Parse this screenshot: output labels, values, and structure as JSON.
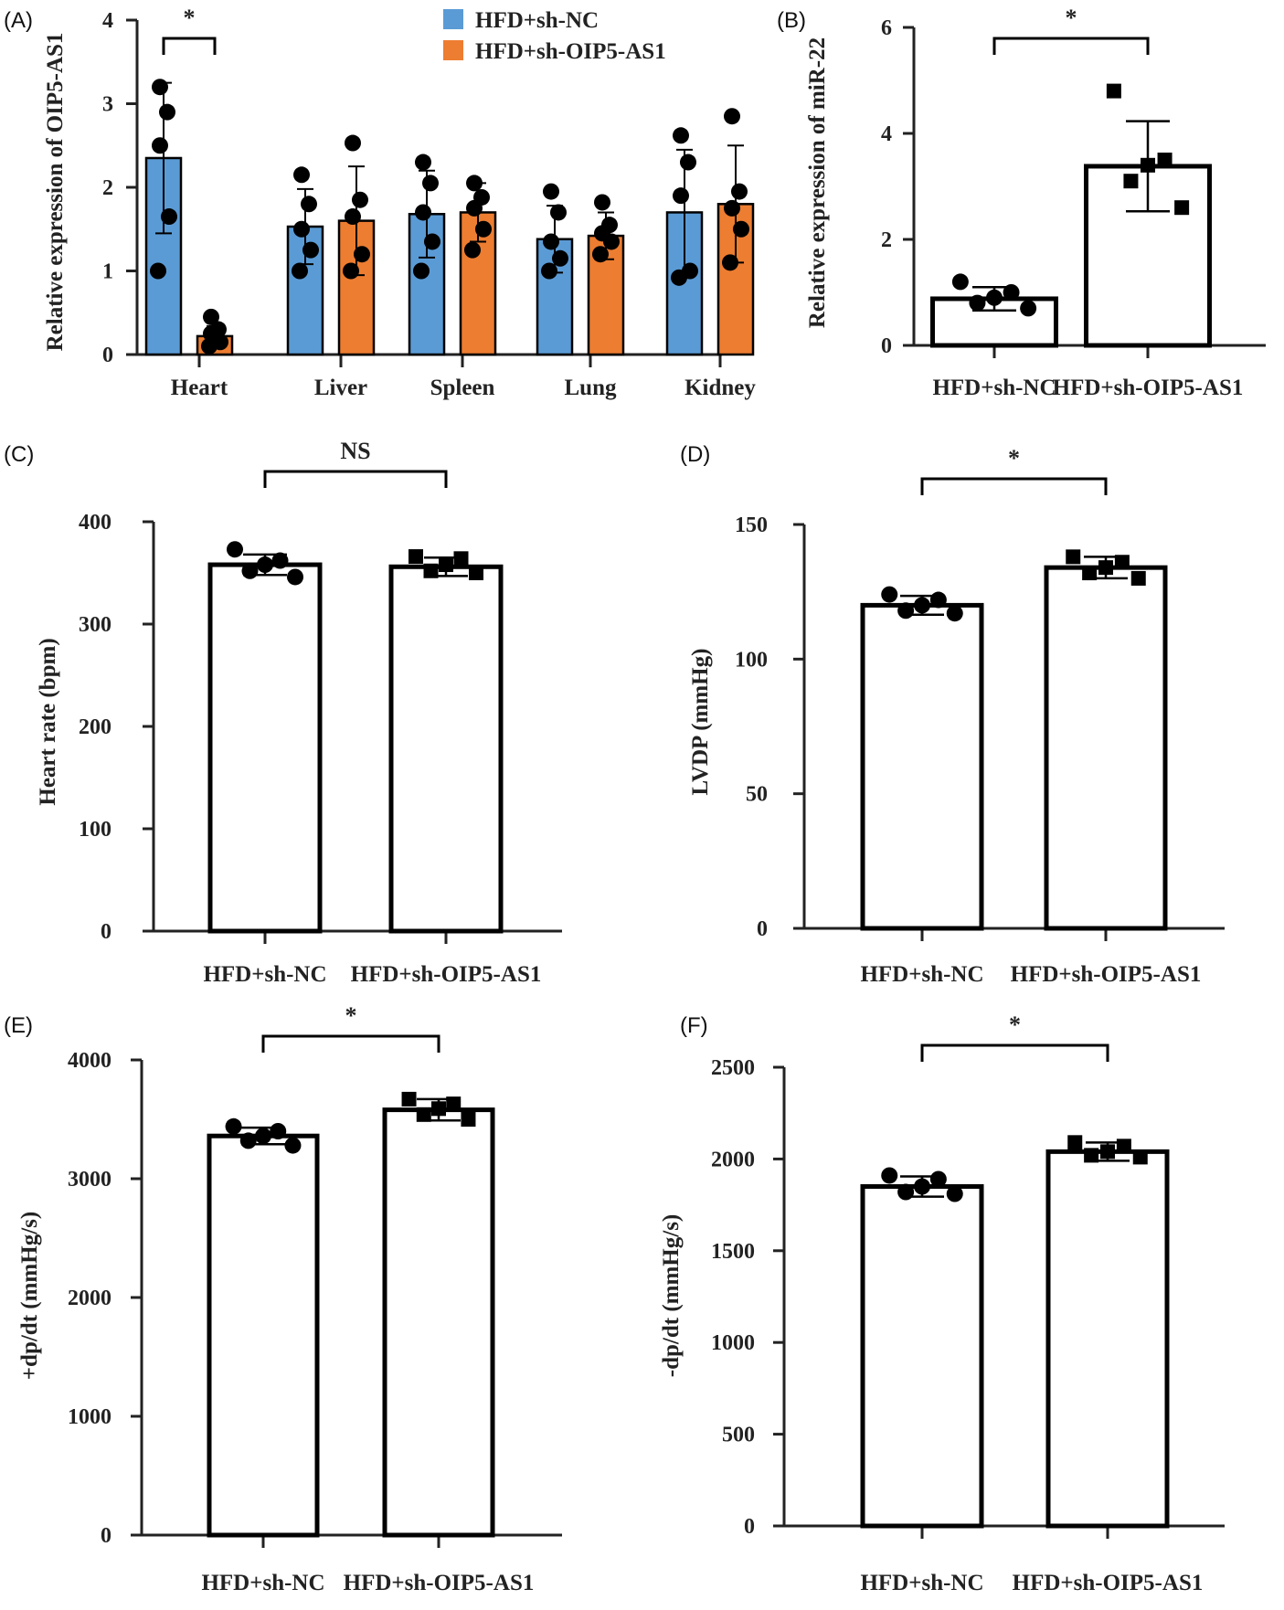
{
  "colors": {
    "series1": "#5b9bd5",
    "series2": "#ed7d31",
    "outline": "#000000"
  },
  "chart_data": [
    {
      "panel": "(A)",
      "type": "bar",
      "ylabel": "Relative expression of OIP5-AS1",
      "ylim": [
        0,
        4
      ],
      "yticks": [
        "0",
        "1",
        "2",
        "3",
        "4"
      ],
      "legend_placement": "top-center",
      "categories": [
        "Heart",
        "Liver",
        "Spleen",
        "Lung",
        "Kidney"
      ],
      "series": [
        {
          "name": "HFD+sh-NC",
          "color": "#5b9bd5",
          "marker": "circle",
          "values": [
            2.35,
            1.53,
            1.68,
            1.38,
            1.7
          ],
          "errors": [
            0.9,
            0.45,
            0.52,
            0.4,
            0.75
          ],
          "points": [
            [
              3.2,
              2.9,
              2.5,
              1.65,
              1.0
            ],
            [
              2.15,
              1.8,
              1.5,
              1.25,
              1.0
            ],
            [
              2.3,
              2.05,
              1.7,
              1.35,
              1.0
            ],
            [
              1.95,
              1.7,
              1.35,
              1.15,
              1.0
            ],
            [
              2.62,
              2.3,
              1.9,
              1.0,
              0.92
            ]
          ]
        },
        {
          "name": "HFD+sh-OIP5-AS1",
          "color": "#ed7d31",
          "marker": "circle",
          "values": [
            0.22,
            1.6,
            1.7,
            1.42,
            1.8
          ],
          "errors": [
            0.12,
            0.65,
            0.35,
            0.28,
            0.7
          ],
          "points": [
            [
              0.45,
              0.3,
              0.25,
              0.15,
              0.1
            ],
            [
              2.53,
              1.85,
              1.65,
              1.2,
              1.0
            ],
            [
              2.05,
              1.88,
              1.75,
              1.5,
              1.25
            ],
            [
              1.82,
              1.55,
              1.45,
              1.35,
              1.2
            ],
            [
              2.85,
              1.95,
              1.75,
              1.5,
              1.1
            ]
          ]
        }
      ],
      "annotations": [
        {
          "between": [
            "Heart:HFD+sh-NC",
            "Heart:HFD+sh-OIP5-AS1"
          ],
          "text": "*"
        }
      ]
    },
    {
      "panel": "(B)",
      "type": "bar",
      "ylabel": "Relative expression of miR-22",
      "ylim": [
        0,
        6
      ],
      "yticks": [
        "0",
        "2",
        "4",
        "6"
      ],
      "categories": [
        "HFD+sh-NC",
        "HFD+sh-OIP5-AS1"
      ],
      "values": [
        0.88,
        3.38
      ],
      "errors": [
        0.22,
        0.85
      ],
      "markers": [
        "circle",
        "square"
      ],
      "points": [
        [
          1.2,
          1.0,
          0.9,
          0.8,
          0.7
        ],
        [
          4.8,
          3.5,
          3.4,
          3.1,
          2.6
        ]
      ],
      "annotations": [
        {
          "between": [
            "HFD+sh-NC",
            "HFD+sh-OIP5-AS1"
          ],
          "text": "*"
        }
      ]
    },
    {
      "panel": "(C)",
      "type": "bar",
      "ylabel": "Heart rate (bpm)",
      "ylim": [
        0,
        400
      ],
      "yticks": [
        "0",
        "100",
        "200",
        "300",
        "400"
      ],
      "categories": [
        "HFD+sh-NC",
        "HFD+sh-OIP5-AS1"
      ],
      "values": [
        358,
        356
      ],
      "errors": [
        10,
        9
      ],
      "markers": [
        "circle",
        "square"
      ],
      "points": [
        [
          373,
          362,
          358,
          352,
          346
        ],
        [
          366,
          364,
          358,
          352,
          350
        ]
      ],
      "annotations": [
        {
          "between": [
            "HFD+sh-NC",
            "HFD+sh-OIP5-AS1"
          ],
          "text": "NS"
        }
      ]
    },
    {
      "panel": "(D)",
      "type": "bar",
      "ylabel": "LVDP (mmHg)",
      "ylim": [
        0,
        150
      ],
      "yticks": [
        "0",
        "50",
        "100",
        "150"
      ],
      "categories": [
        "HFD+sh-NC",
        "HFD+sh-OIP5-AS1"
      ],
      "values": [
        120,
        134
      ],
      "errors": [
        3.5,
        4
      ],
      "markers": [
        "circle",
        "square"
      ],
      "points": [
        [
          124,
          122,
          120,
          118,
          117
        ],
        [
          138,
          136,
          134,
          132,
          130
        ]
      ],
      "annotations": [
        {
          "between": [
            "HFD+sh-NC",
            "HFD+sh-OIP5-AS1"
          ],
          "text": "*"
        }
      ]
    },
    {
      "panel": "(E)",
      "type": "bar",
      "ylabel": "+dp/dt (mmHg/s)",
      "ylim": [
        0,
        4000
      ],
      "yticks": [
        "0",
        "1000",
        "2000",
        "3000",
        "4000"
      ],
      "categories": [
        "HFD+sh-NC",
        "HFD+sh-OIP5-AS1"
      ],
      "values": [
        3360,
        3580
      ],
      "errors": [
        70,
        90
      ],
      "markers": [
        "circle",
        "square"
      ],
      "points": [
        [
          3440,
          3400,
          3360,
          3320,
          3280
        ],
        [
          3670,
          3630,
          3590,
          3540,
          3500
        ]
      ],
      "annotations": [
        {
          "between": [
            "HFD+sh-NC",
            "HFD+sh-OIP5-AS1"
          ],
          "text": "*"
        }
      ]
    },
    {
      "panel": "(F)",
      "type": "bar",
      "ylabel": "-dp/dt (mmHg/s)",
      "ylim": [
        0,
        2500
      ],
      "yticks": [
        "0",
        "500",
        "1000",
        "1500",
        "2000",
        "2500"
      ],
      "categories": [
        "HFD+sh-NC",
        "HFD+sh-OIP5-AS1"
      ],
      "values": [
        1850,
        2040
      ],
      "errors": [
        55,
        50
      ],
      "markers": [
        "circle",
        "square"
      ],
      "points": [
        [
          1910,
          1890,
          1850,
          1820,
          1810
        ],
        [
          2090,
          2070,
          2040,
          2020,
          2010
        ]
      ],
      "annotations": [
        {
          "between": [
            "HFD+sh-NC",
            "HFD+sh-OIP5-AS1"
          ],
          "text": "*"
        }
      ]
    }
  ]
}
